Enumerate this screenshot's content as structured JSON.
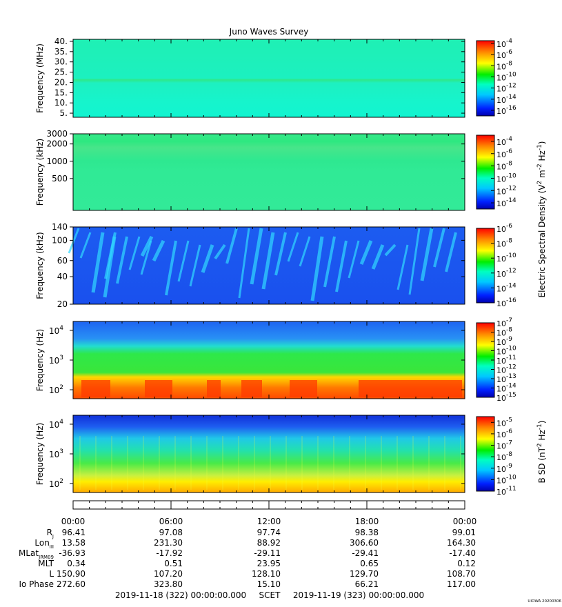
{
  "chart_data": {
    "type": "heatmap",
    "title": "Juno Waves Survey",
    "x_tick_labels": [
      "00:00",
      "06:00",
      "12:00",
      "18:00",
      "00:00"
    ],
    "panels": [
      {
        "id": "mhz",
        "ylabel": "Frequency (MHz)",
        "y_tick_labels": [
          "40.",
          "35.",
          "30.",
          "25.",
          "20.",
          "15.",
          "10.",
          "5."
        ],
        "y_ticks": [
          40,
          35,
          30,
          25,
          20,
          15,
          10,
          5
        ],
        "y_range": [
          3,
          41
        ],
        "y_scale": "linear",
        "colorbar": {
          "base": "10",
          "exponents": [
            "-4",
            "-6",
            "-8",
            "-10",
            "-12",
            "-14",
            "-16"
          ],
          "range": [
            -17,
            -3.5
          ]
        }
      },
      {
        "id": "khz_high",
        "ylabel": "Frequency (kHz)",
        "y_tick_labels": [
          "3000",
          "2000",
          "1000",
          "500"
        ],
        "y_ticks": [
          3000,
          2000,
          1000,
          500
        ],
        "y_range": [
          140,
          3000
        ],
        "y_scale": "log",
        "colorbar": {
          "base": "10",
          "exponents": [
            "-4",
            "-6",
            "-8",
            "-10",
            "-12",
            "-14"
          ],
          "range": [
            -15,
            -3
          ]
        }
      },
      {
        "id": "khz_low",
        "ylabel": "Frequency (kHz)",
        "y_tick_labels": [
          "140",
          "100",
          "60",
          "40",
          "20"
        ],
        "y_ticks": [
          140,
          100,
          60,
          40,
          20
        ],
        "y_range": [
          20,
          140
        ],
        "y_scale": "log",
        "colorbar": {
          "base": "10",
          "exponents": [
            "-6",
            "-8",
            "-10",
            "-12",
            "-14",
            "-16"
          ],
          "range": [
            -16,
            -6
          ]
        }
      },
      {
        "id": "e_hz",
        "ylabel": "Frequency (Hz)",
        "y_tick_base": "10",
        "y_tick_exponents": [
          "4",
          "3",
          "2"
        ],
        "y_ticks": [
          10000,
          1000,
          100
        ],
        "y_range": [
          50,
          20000
        ],
        "y_scale": "log",
        "colorbar": {
          "base": "10",
          "exponents": [
            "-7",
            "-8",
            "-9",
            "-10",
            "-11",
            "-12",
            "-13",
            "-14",
            "-15"
          ],
          "range": [
            -15,
            -7
          ]
        }
      },
      {
        "id": "b_hz",
        "ylabel": "Frequency (Hz)",
        "y_tick_base": "10",
        "y_tick_exponents": [
          "4",
          "3",
          "2"
        ],
        "y_ticks": [
          10000,
          1000,
          100
        ],
        "y_range": [
          50,
          20000
        ],
        "y_scale": "log",
        "colorbar": {
          "base": "10",
          "exponents": [
            "-5",
            "-6",
            "-7",
            "-8",
            "-9",
            "-10",
            "-11"
          ],
          "range": [
            -11,
            -4.5
          ]
        }
      }
    ],
    "colorbar_labels": {
      "electric": {
        "pre": "Electric Spectral Density (V",
        "sup1": "2",
        "mid": " m",
        "sup2": "-2",
        "mid2": " Hz",
        "sup3": "-1",
        "post": ")"
      },
      "magnetic": {
        "pre": "B SD (nT",
        "sup1": "2",
        "mid": " Hz",
        "sup3": "-1",
        "post": ")"
      }
    },
    "ephemeris": {
      "rows": [
        {
          "label": "R",
          "sub": "J",
          "values": [
            "96.41",
            "97.08",
            "97.74",
            "98.38",
            "99.01"
          ]
        },
        {
          "label": "Lon",
          "sub": "III",
          "values": [
            "13.58",
            "231.30",
            "88.92",
            "306.60",
            "164.30"
          ]
        },
        {
          "label": "MLat",
          "sub": "JRM09",
          "values": [
            "-36.93",
            "-17.92",
            "-29.11",
            "-29.41",
            "-17.40"
          ]
        },
        {
          "label": "MLT",
          "sub": "",
          "values": [
            "0.34",
            "0.51",
            "23.95",
            "0.65",
            "0.12"
          ]
        },
        {
          "label": "L",
          "sub": "",
          "values": [
            "150.90",
            "107.20",
            "128.10",
            "129.70",
            "108.70"
          ]
        },
        {
          "label": "Io Phase",
          "sub": "",
          "values": [
            "272.60",
            "323.80",
            "15.10",
            "66.21",
            "117.00"
          ]
        }
      ]
    },
    "footer": {
      "start": "2019-11-18 (322) 00:00:00.000",
      "mid": "SCET",
      "end": "2019-11-19 (323) 00:00:00.000"
    },
    "stamp": "UIOWA 20200306"
  }
}
